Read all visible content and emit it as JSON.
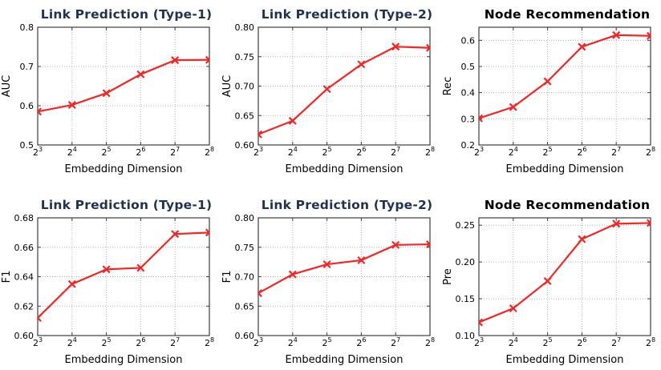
{
  "figure": {
    "background": "#ffffff",
    "line_color": "#f52525",
    "grid_color": "#b5b5b5",
    "spine_color": "#3d3d3d",
    "link_title_color": "#1f3250",
    "node_title_color": "#000000"
  },
  "chart_data": [
    {
      "type": "line",
      "title": "Link Prediction (Type-1)",
      "title_color": "#1f3250",
      "xlabel": "Embedding Dimension",
      "ylabel": "AUC",
      "x_tick_base": "2",
      "x_exponents": [
        3,
        4,
        5,
        6,
        7,
        8
      ],
      "values": [
        0.585,
        0.602,
        0.632,
        0.68,
        0.716,
        0.717
      ],
      "ylim": [
        0.5,
        0.8
      ],
      "yticks": [
        0.5,
        0.6,
        0.7,
        0.8
      ],
      "ytick_labels": [
        "0.5",
        "0.6",
        "0.7",
        "0.8"
      ],
      "grid": true,
      "marker": "x",
      "legend": "none",
      "line_color": "#f52525"
    },
    {
      "type": "line",
      "title": "Link Prediction (Type-2)",
      "title_color": "#1f3250",
      "xlabel": "Embedding Dimension",
      "ylabel": "AUC",
      "x_tick_base": "2",
      "x_exponents": [
        3,
        4,
        5,
        6,
        7,
        8
      ],
      "values": [
        0.618,
        0.641,
        0.695,
        0.737,
        0.767,
        0.765
      ],
      "ylim": [
        0.6,
        0.8
      ],
      "yticks": [
        0.6,
        0.65,
        0.7,
        0.75,
        0.8
      ],
      "ytick_labels": [
        "0.60",
        "0.65",
        "0.70",
        "0.75",
        "0.80"
      ],
      "grid": true,
      "marker": "x",
      "legend": "none",
      "line_color": "#f52525"
    },
    {
      "type": "line",
      "title": "Node Recommendation",
      "title_color": "#000000",
      "xlabel": "Embedding Dimension",
      "ylabel": "Rec",
      "x_tick_base": "2",
      "x_exponents": [
        3,
        4,
        5,
        6,
        7,
        8
      ],
      "values": [
        0.302,
        0.345,
        0.443,
        0.575,
        0.62,
        0.617
      ],
      "ylim": [
        0.2,
        0.65
      ],
      "yticks": [
        0.2,
        0.3,
        0.4,
        0.5,
        0.6
      ],
      "ytick_labels": [
        "0.2",
        "0.3",
        "0.4",
        "0.5",
        "0.6"
      ],
      "grid": true,
      "marker": "x",
      "legend": "none",
      "line_color": "#f52525"
    },
    {
      "type": "line",
      "title": "Link Prediction (Type-1)",
      "title_color": "#1f3250",
      "xlabel": "Embedding Dimension",
      "ylabel": "F1",
      "x_tick_base": "2",
      "x_exponents": [
        3,
        4,
        5,
        6,
        7,
        8
      ],
      "values": [
        0.612,
        0.635,
        0.645,
        0.646,
        0.669,
        0.67
      ],
      "ylim": [
        0.6,
        0.68
      ],
      "yticks": [
        0.6,
        0.62,
        0.64,
        0.66,
        0.68
      ],
      "ytick_labels": [
        "0.60",
        "0.62",
        "0.64",
        "0.66",
        "0.68"
      ],
      "grid": true,
      "marker": "x",
      "legend": "none",
      "line_color": "#f52525"
    },
    {
      "type": "line",
      "title": "Link Prediction (Type-2)",
      "title_color": "#1f3250",
      "xlabel": "Embedding Dimension",
      "ylabel": "F1",
      "x_tick_base": "2",
      "x_exponents": [
        3,
        4,
        5,
        6,
        7,
        8
      ],
      "values": [
        0.672,
        0.704,
        0.721,
        0.728,
        0.754,
        0.755
      ],
      "ylim": [
        0.6,
        0.8
      ],
      "yticks": [
        0.6,
        0.65,
        0.7,
        0.75,
        0.8
      ],
      "ytick_labels": [
        "0.60",
        "0.65",
        "0.70",
        "0.75",
        "0.80"
      ],
      "grid": true,
      "marker": "x",
      "legend": "none",
      "line_color": "#f52525"
    },
    {
      "type": "line",
      "title": "Node Recommendation",
      "title_color": "#000000",
      "xlabel": "Embedding Dimension",
      "ylabel": "Pre",
      "x_tick_base": "2",
      "x_exponents": [
        3,
        4,
        5,
        6,
        7,
        8
      ],
      "values": [
        0.118,
        0.137,
        0.174,
        0.231,
        0.252,
        0.253
      ],
      "ylim": [
        0.1,
        0.26
      ],
      "yticks": [
        0.1,
        0.15,
        0.2,
        0.25
      ],
      "ytick_labels": [
        "0.10",
        "0.15",
        "0.20",
        "0.25"
      ],
      "grid": true,
      "marker": "x",
      "legend": "none",
      "line_color": "#f52525"
    }
  ]
}
